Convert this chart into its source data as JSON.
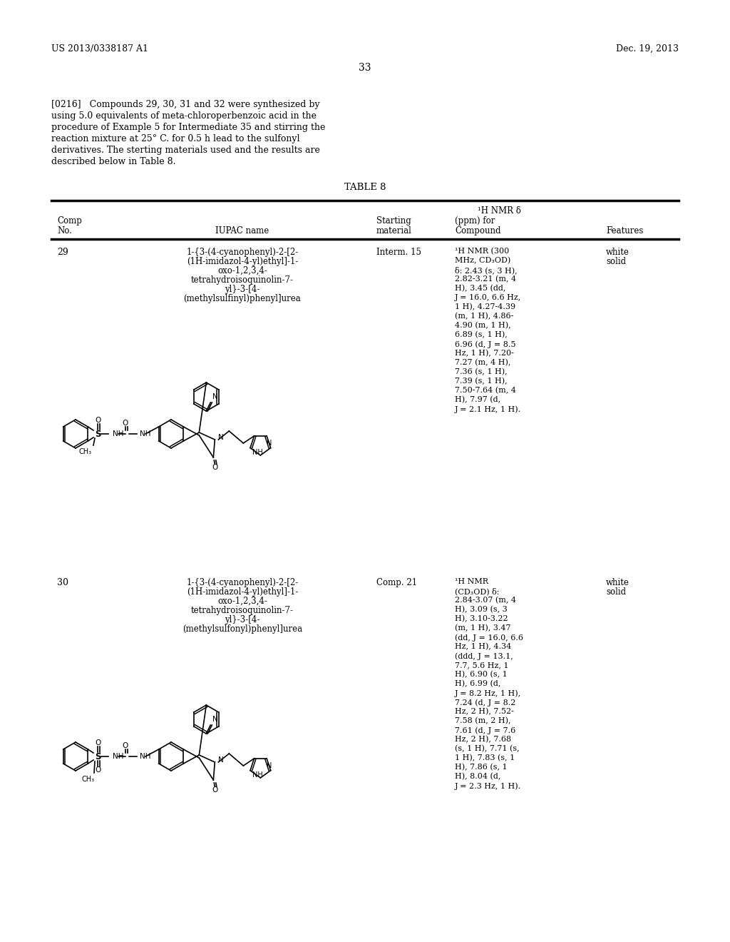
{
  "background_color": "#ffffff",
  "header_left": "US 2013/0338187 A1",
  "header_right": "Dec. 19, 2013",
  "page_number": "33",
  "para_lines": [
    "[0216]   Compounds 29, 30, 31 and 32 were synthesized by",
    "using 5.0 equivalents of meta-chloroperbenzoic acid in the",
    "procedure of Example 5 for Intermediate 35 and stirring the",
    "reaction mixture at 25° C. for 0.5 h lead to the sulfonyl",
    "derivatives. The sterting materials used and the results are",
    "described below in Table 8."
  ],
  "table_title": "TABLE 8",
  "nmr_header": "¹H NMR δ",
  "col_comp": "Comp",
  "col_no": "No.",
  "col_iupac": "IUPAC name",
  "col_starting": "Starting",
  "col_material": "material",
  "col_ppm": "(ppm) for",
  "col_compound": "Compound",
  "col_features": "Features",
  "c29_no": "29",
  "c29_iupac_lines": [
    "1-{3-(4-cyanophenyl)-2-[2-",
    "(1H-imidazol-4-yl)ethyl]-1-",
    "oxo-1,2,3,4-",
    "tetrahydroisoquinolin-7-",
    "yl}-3-[4-",
    "(methylsulfinyl)phenyl]urea"
  ],
  "c29_starting": "Interm. 15",
  "c29_nmr_lines": [
    "¹H NMR (300",
    "MHz, CD₃OD)",
    "δ: 2.43 (s, 3 H),",
    "2.82-3.21 (m, 4",
    "H), 3.45 (dd,",
    "J = 16.0, 6.6 Hz,",
    "1 H), 4.27-4.39",
    "(m, 1 H), 4.86-",
    "4.90 (m, 1 H),",
    "6.89 (s, 1 H),",
    "6.96 (d, J = 8.5",
    "Hz, 1 H), 7.20-",
    "7.27 (m, 4 H),",
    "7.36 (s, 1 H),",
    "7.39 (s, 1 H),",
    "7.50-7.64 (m, 4",
    "H), 7.97 (d,",
    "J = 2.1 Hz, 1 H)."
  ],
  "c29_feat": [
    "white",
    "solid"
  ],
  "c30_no": "30",
  "c30_iupac_lines": [
    "1-{3-(4-cyanophenyl)-2-[2-",
    "(1H-imidazol-4-yl)ethyl]-1-",
    "oxo-1,2,3,4-",
    "tetrahydroisoquinolin-7-",
    "yl}-3-[4-",
    "(methylsulfonyl)phenyl]urea"
  ],
  "c30_starting": "Comp. 21",
  "c30_nmr_lines": [
    "¹H NMR",
    "(CD₃OD) δ:",
    "2.84-3.07 (m, 4",
    "H), 3.09 (s, 3",
    "H), 3.10-3.22",
    "(m, 1 H), 3.47",
    "(dd, J = 16.0, 6.6",
    "Hz, 1 H), 4.34",
    "(ddd, J = 13.1,",
    "7.7, 5.6 Hz, 1",
    "H), 6.90 (s, 1",
    "H), 6.99 (d,",
    "J = 8.2 Hz, 1 H),",
    "7.24 (d, J = 8.2",
    "Hz, 2 H), 7.52-",
    "7.58 (m, 2 H),",
    "7.61 (d, J = 7.6",
    "Hz, 2 H), 7.68",
    "(s, 1 H), 7.71 (s,",
    "1 H), 7.83 (s, 1",
    "H), 7.86 (s, 1",
    "H), 8.04 (d,",
    "J = 2.3 Hz, 1 H)."
  ],
  "c30_feat": [
    "white",
    "solid"
  ]
}
